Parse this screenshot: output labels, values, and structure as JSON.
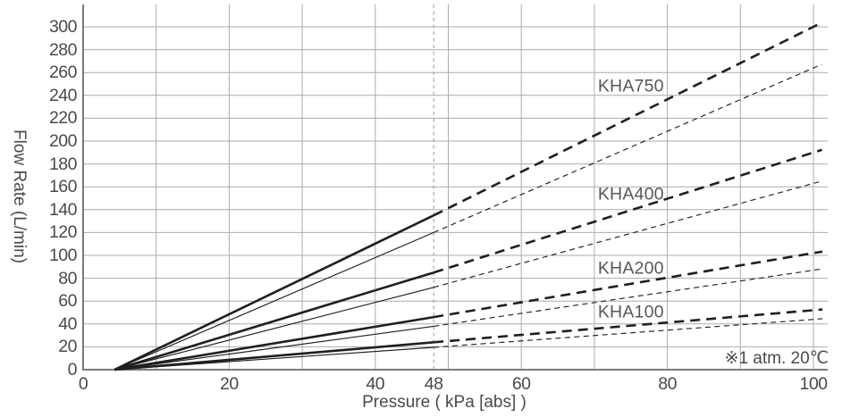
{
  "chart_data": {
    "type": "line",
    "title": "",
    "xlabel": "Pressure ( kPa [abs] )",
    "ylabel": "Flow Rate (L/min)",
    "note": "※1 atm. 20℃",
    "xlim": [
      0,
      100
    ],
    "ylim": [
      0,
      300
    ],
    "x_ticks": [
      0,
      20,
      40,
      48,
      60,
      80,
      100
    ],
    "y_tick_step": 20,
    "x_grid_step": 10,
    "y_grid_step": 20,
    "grid": true,
    "marker_line_x": 48,
    "solid_to_dashed_at_x": 48,
    "series": [
      {
        "name": "KHA750-upper",
        "model": "KHA750",
        "weight": "thick",
        "x": [
          4.3,
          48,
          100
        ],
        "y": [
          0,
          135,
          300
        ]
      },
      {
        "name": "KHA750-lower",
        "model": "KHA750",
        "weight": "thin",
        "x": [
          4.3,
          48,
          100
        ],
        "y": [
          0,
          120,
          264
        ]
      },
      {
        "name": "KHA400-upper",
        "model": "KHA400",
        "weight": "thick",
        "x": [
          4.3,
          48,
          100
        ],
        "y": [
          0,
          85,
          190
        ]
      },
      {
        "name": "KHA400-lower",
        "model": "KHA400",
        "weight": "thin",
        "x": [
          4.3,
          48,
          100
        ],
        "y": [
          0,
          72,
          163
        ]
      },
      {
        "name": "KHA200-upper",
        "model": "KHA200",
        "weight": "thick",
        "x": [
          4.3,
          48,
          100
        ],
        "y": [
          0,
          46,
          102
        ]
      },
      {
        "name": "KHA200-lower",
        "model": "KHA200",
        "weight": "thin",
        "x": [
          4.3,
          48,
          100
        ],
        "y": [
          0,
          38,
          87
        ]
      },
      {
        "name": "KHA100-upper",
        "model": "KHA100",
        "weight": "thick",
        "x": [
          4.3,
          48,
          100
        ],
        "y": [
          0,
          24,
          52
        ]
      },
      {
        "name": "KHA100-lower",
        "model": "KHA100",
        "weight": "thin",
        "x": [
          4.3,
          48,
          100
        ],
        "y": [
          0,
          19.5,
          44
        ]
      }
    ],
    "series_labels": [
      {
        "text": "KHA750",
        "x": 75,
        "y": 248
      },
      {
        "text": "KHA400",
        "x": 75,
        "y": 153
      },
      {
        "text": "KHA200",
        "x": 75,
        "y": 88
      },
      {
        "text": "KHA100",
        "x": 75,
        "y": 50
      }
    ],
    "colors": {
      "line": "#1f1f1f",
      "grid": "#ababab",
      "axis": "#7b7b7b",
      "marker_line": "#999999",
      "text": "#4a4a4a",
      "series_label_text": "#56575a",
      "background": "#ffffff"
    }
  }
}
